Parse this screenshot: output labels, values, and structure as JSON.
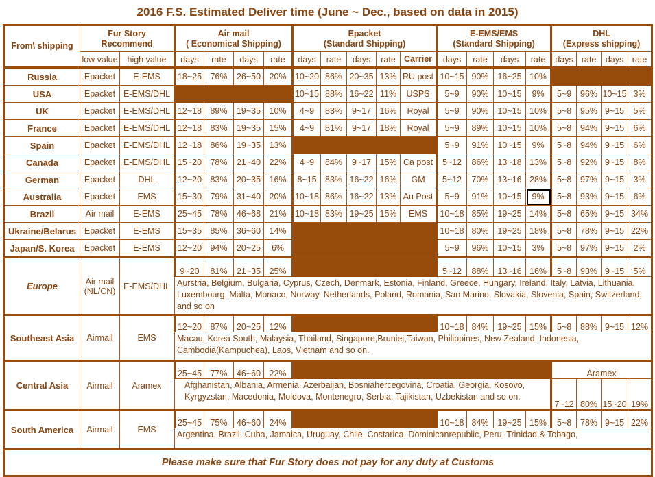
{
  "title": "2016 F.S. Estimated Deliver time (June ~ Dec., based on data in 2015)",
  "header": {
    "from": "From\\ shipping",
    "recommend": [
      "Fur Story",
      "Recommend"
    ],
    "low": "low value",
    "high": "high value",
    "air": [
      "Air mail",
      "( Economical Shipping)"
    ],
    "ep": [
      "Epacket",
      "(Standard Shipping)"
    ],
    "ems": [
      "E-EMS/EMS",
      "(Standard Shipping)"
    ],
    "dhl": [
      "DHL",
      "(Express shipping)"
    ],
    "days": "days",
    "rate": "rate",
    "carrier": "Carrier"
  },
  "rows": [
    {
      "name": "Russia",
      "low": "Epacket",
      "high": "E-EMS",
      "air": [
        "18~25",
        "76%",
        "26~50",
        "20%"
      ],
      "ep": [
        "10~20",
        "86%",
        "20~35",
        "13%",
        "RU post"
      ],
      "ems": [
        "10~15",
        "90%",
        "16~25",
        "10%"
      ],
      "dhl": null
    },
    {
      "name": "USA",
      "low": "Epacket",
      "high": "E-EMS/DHL",
      "air": null,
      "ep": [
        "10~15",
        "88%",
        "16~22",
        "11%",
        "USPS"
      ],
      "ems": [
        "5~9",
        "90%",
        "10~15",
        "9%"
      ],
      "dhl": [
        "5~9",
        "96%",
        "10~15",
        "3%"
      ]
    },
    {
      "name": "UK",
      "low": "Epacket",
      "high": "E-EMS/DHL",
      "air": [
        "12~18",
        "89%",
        "19~35",
        "10%"
      ],
      "ep": [
        "4~9",
        "83%",
        "9~17",
        "16%",
        "Royal"
      ],
      "ems": [
        "5~9",
        "90%",
        "10~15",
        "10%"
      ],
      "dhl": [
        "5~8",
        "95%",
        "9~15",
        "5%"
      ]
    },
    {
      "name": "France",
      "low": "Epacket",
      "high": "E-EMS/DHL",
      "air": [
        "12~18",
        "83%",
        "19~35",
        "15%"
      ],
      "ep": [
        "4~9",
        "81%",
        "9~17",
        "18%",
        "Royal"
      ],
      "ems": [
        "5~9",
        "89%",
        "10~15",
        "10%"
      ],
      "dhl": [
        "5~8",
        "94%",
        "9~15",
        "6%"
      ]
    },
    {
      "name": "Spain",
      "low": "Epacket",
      "high": "E-EMS/DHL",
      "air": [
        "12~18",
        "86%",
        "19~35",
        "13%"
      ],
      "ep": null,
      "ems": [
        "5~9",
        "91%",
        "10~15",
        "9%"
      ],
      "dhl": [
        "5~8",
        "94%",
        "9~15",
        "6%"
      ]
    },
    {
      "name": "Canada",
      "low": "Epacket",
      "high": "E-EMS/DHL",
      "air": [
        "15~20",
        "78%",
        "21~40",
        "22%"
      ],
      "ep": [
        "4~9",
        "84%",
        "9~17",
        "15%",
        "Ca post"
      ],
      "ems": [
        "5~12",
        "86%",
        "13~18",
        "13%"
      ],
      "dhl": [
        "5~8",
        "92%",
        "9~15",
        "8%"
      ]
    },
    {
      "name": "German",
      "low": "Epacket",
      "high": "DHL",
      "air": [
        "12~20",
        "83%",
        "20~35",
        "16%"
      ],
      "ep": [
        "8~15",
        "83%",
        "16~22",
        "16%",
        "GM"
      ],
      "ems": [
        "5~12",
        "70%",
        "13~16",
        "28%"
      ],
      "dhl": [
        "5~8",
        "97%",
        "9~15",
        "3%"
      ]
    },
    {
      "name": "Australia",
      "low": "Epacket",
      "high": "EMS",
      "air": [
        "15~30",
        "79%",
        "31~40",
        "20%"
      ],
      "ep": [
        "10~18",
        "86%",
        "16~22",
        "13%",
        "Au Post"
      ],
      "ems": [
        "5~9",
        "91%",
        "10~15",
        "9%"
      ],
      "dhl": [
        "5~8",
        "93%",
        "9~15",
        "6%"
      ],
      "selected_cell": "ems.3"
    },
    {
      "name": "Brazil",
      "low": "Air mail",
      "high": "E-EMS",
      "air": [
        "25~45",
        "78%",
        "46~68",
        "21%"
      ],
      "ep": [
        "10~18",
        "83%",
        "19~25",
        "15%",
        "EMS"
      ],
      "ems": [
        "10~18",
        "85%",
        "19~25",
        "14%"
      ],
      "dhl": [
        "5~8",
        "65%",
        "9~15",
        "34%"
      ]
    },
    {
      "name": "Ukraine/Belarus",
      "low": "Epacket",
      "high": "E-EMS",
      "air": [
        "15~35",
        "85%",
        "36~60",
        "14%"
      ],
      "ep": null,
      "ems": [
        "10~18",
        "80%",
        "19~25",
        "18%"
      ],
      "dhl": [
        "5~8",
        "78%",
        "9~15",
        "22%"
      ]
    },
    {
      "name": "Japan/S. Korea",
      "low": "Epacket",
      "high": "E-EMS",
      "air": [
        "12~20",
        "94%",
        "20~25",
        "6%"
      ],
      "ep": null,
      "ems": [
        "5~9",
        "96%",
        "10~15",
        "3%"
      ],
      "dhl": [
        "5~8",
        "97%",
        "9~15",
        "2%"
      ]
    }
  ],
  "regions": [
    {
      "name": "Europe",
      "italic": true,
      "low": "Air mail (NL/CN)",
      "high": "E-EMS/DHL",
      "air": [
        "9~20",
        "81%",
        "21~35",
        "25%"
      ],
      "ep": null,
      "ems": [
        "5~12",
        "88%",
        "13~16",
        "16%"
      ],
      "dhl": [
        "5~8",
        "93%",
        "9~15",
        "5%"
      ],
      "countries": "Aurstria, Belgium, Bulgaria, Cyprus, Czech, Denmark, Estonia, Finland, Greece, Hungary, Ireland, Italy, Latvia, Lithuania, Luxembourg, Malta, Monaco, Norway, Netherlands, Poland,  Romania, San Marino, Slovakia, Slovenia, Spain, Switzerland, and so on"
    },
    {
      "name": "Southeast Asia",
      "low": "Airmail",
      "high": "EMS",
      "air": [
        "12~20",
        "87%",
        "20~25",
        "12%"
      ],
      "ep": null,
      "ems": [
        "10~18",
        "84%",
        "19~25",
        "15%"
      ],
      "dhl": [
        "5~8",
        "88%",
        "9~15",
        "12%"
      ],
      "countries": "Macau, Korea South, Malaysia, Thailand, Singapore,Bruniei,Taiwan, Philippines, New Zealand, Indonesia, Cambodia(Kampuchea), Laos, Vietnam and so on."
    },
    {
      "name": "Central  Asia",
      "low": "Airmail",
      "high": "Aramex",
      "air": [
        "25~45",
        "77%",
        "46~60",
        "22%"
      ],
      "ep": null,
      "ems": null,
      "alt_carrier": "Aramex",
      "dhl": [
        "7~12",
        "80%",
        "15~20",
        "19%"
      ],
      "countries": "Afghanistan, Albania, Armenia, Azerbaijan, Bosniahercegovina, Croatia, Georgia, Kosovo, Kyrgyzstan, Macedonia, Moldova, Montenegro, Serbia, Tajikistan, Uzbekistan and so on."
    },
    {
      "name": "South America",
      "low": "Airmail",
      "high": "EMS",
      "air": [
        "25~45",
        "75%",
        "46~60",
        "24%"
      ],
      "ep": null,
      "ems": [
        "10~18",
        "84%",
        "19~25",
        "15%"
      ],
      "dhl": [
        "5~8",
        "78%",
        "9~15",
        "22%"
      ],
      "countries": "Argentina, Brazil, Cuba, Jamaica, Uruguay, Chile, Costarica, Dominicanrepublic, Peru, Trinidad & Tobago,"
    }
  ],
  "footer": "Please make sure that Fur Story does not pay for any duty at Customs",
  "colors": {
    "accent": "#974b0a",
    "text": "#8a4510"
  }
}
